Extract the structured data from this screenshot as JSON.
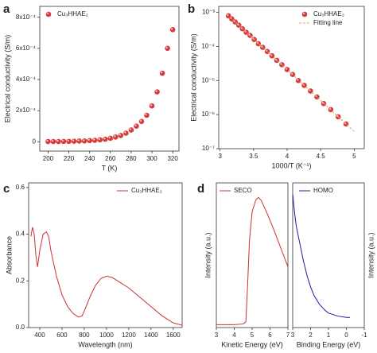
{
  "chart_data": [
    {
      "type": "scatter",
      "panel_label": "a",
      "xlabel": "T (K)",
      "ylabel": "Electrical conductivity (S/m)",
      "x": [
        200,
        205,
        210,
        215,
        220,
        225,
        230,
        235,
        240,
        245,
        250,
        255,
        260,
        265,
        270,
        275,
        280,
        285,
        290,
        295,
        300,
        305,
        310,
        315,
        320
      ],
      "series": [
        {
          "name": "Cu₃HHAE₂",
          "color": "#d42a2a",
          "values": [
            1e-06,
            1e-06,
            1e-06,
            2e-06,
            2e-06,
            3e-06,
            4e-06,
            5e-06,
            7e-06,
            9e-06,
            1.2e-05,
            1.6e-05,
            2.2e-05,
            3e-05,
            4e-05,
            5.5e-05,
            7.5e-05,
            0.0001,
            0.00013,
            0.00017,
            0.00023,
            0.00032,
            0.00044,
            0.0006,
            0.00072
          ]
        }
      ],
      "xlim": [
        192,
        326
      ],
      "xticks": [
        200,
        220,
        240,
        260,
        280,
        300,
        320
      ],
      "ylim": [
        -6e-05,
        0.00087
      ],
      "yticks": [
        0,
        {
          "value": 0.0002,
          "label": "2x10⁻⁴"
        },
        {
          "value": 0.0004,
          "label": "4x10⁻⁴"
        },
        {
          "value": 0.0006,
          "label": "6x10⁻⁴"
        },
        {
          "value": 0.0008,
          "label": "8x10⁻⁴"
        }
      ],
      "legend": "upper left"
    },
    {
      "type": "scatter",
      "panel_label": "b",
      "xlabel": "1000/T (K⁻¹)",
      "ylabel": "Electrical conductivity (S/m)",
      "log_y": true,
      "x": [
        3.125,
        3.175,
        3.226,
        3.279,
        3.333,
        3.39,
        3.448,
        3.509,
        3.571,
        3.636,
        3.704,
        3.774,
        3.846,
        3.922,
        4.0,
        4.082,
        4.167,
        4.255,
        4.348,
        4.444,
        4.545,
        4.651,
        4.762,
        4.878
      ],
      "series": [
        {
          "name": "Cu₃HHAE₂",
          "color": "#d42a2a",
          "values": [
            0.00079,
            0.00064,
            0.00052,
            0.00042,
            0.00033,
            0.00026,
            0.00021,
            0.00016,
            0.00012,
            9.4e-05,
            7.1e-05,
            5.3e-05,
            3.9e-05,
            2.9e-05,
            2.1e-05,
            1.5e-05,
            1e-05,
            7.2e-06,
            4.9e-06,
            3.3e-06,
            2.1e-06,
            1.4e-06,
            8.6e-07,
            5.3e-07
          ]
        },
        {
          "name": "Fitting line",
          "color": "#e0a070",
          "style": "dashed",
          "x": [
            3.1,
            5.0
          ],
          "values": [
            0.00088,
            3.2e-07
          ]
        }
      ],
      "xlim": [
        2.98,
        5.15
      ],
      "xticks": [
        3,
        3.5,
        4,
        4.5,
        5
      ],
      "ylim": [
        1e-07,
        0.0015
      ],
      "yticks": [
        {
          "value": 1e-07,
          "label": "10⁻⁷"
        },
        {
          "value": 1e-06,
          "label": "10⁻⁶"
        },
        {
          "value": 1e-05,
          "label": "10⁻⁵"
        },
        {
          "value": 0.0001,
          "label": "10⁻⁴"
        },
        {
          "value": 0.001,
          "label": "10⁻³"
        }
      ],
      "legend": "upper right"
    },
    {
      "type": "line",
      "panel_label": "c",
      "xlabel": "Wavelength (nm)",
      "ylabel": "Absorbance",
      "x": [
        320,
        335,
        350,
        365,
        380,
        400,
        430,
        460,
        480,
        500,
        550,
        600,
        650,
        700,
        750,
        780,
        800,
        850,
        900,
        950,
        1000,
        1050,
        1100,
        1200,
        1300,
        1400,
        1500,
        1600,
        1680
      ],
      "series": [
        {
          "name": "Cu₃HHAE₂",
          "color": "#d03030",
          "values": [
            0.39,
            0.43,
            0.4,
            0.31,
            0.26,
            0.33,
            0.4,
            0.41,
            0.39,
            0.33,
            0.22,
            0.14,
            0.09,
            0.06,
            0.045,
            0.05,
            0.07,
            0.13,
            0.18,
            0.21,
            0.22,
            0.215,
            0.2,
            0.17,
            0.13,
            0.09,
            0.05,
            0.02,
            0.01
          ]
        }
      ],
      "xlim": [
        300,
        1680
      ],
      "xticks": [
        400,
        600,
        800,
        1000,
        1200,
        1400,
        1600
      ],
      "ylim": [
        0,
        0.62
      ],
      "yticks": [
        {
          "value": 0,
          "label": "0.0"
        },
        0.2,
        0.4,
        0.6
      ],
      "legend": "upper right"
    },
    {
      "type": "line",
      "panel_label": "d",
      "xlabel": "Kinetic Energy (eV)",
      "ylabel": "Intensity (a.u.)",
      "x": [
        3,
        4,
        4.5,
        4.65,
        4.75,
        4.85,
        5.0,
        5.2,
        5.35,
        5.5,
        5.8,
        6.2,
        6.6,
        7
      ],
      "series": [
        {
          "name": "SECO",
          "color": "#d03030",
          "values": [
            0.02,
            0.02,
            0.025,
            0.04,
            0.3,
            0.6,
            0.8,
            0.88,
            0.9,
            0.88,
            0.8,
            0.68,
            0.55,
            0.42
          ]
        }
      ],
      "xlim": [
        3,
        7
      ],
      "xticks": [
        3,
        4,
        5,
        6,
        7
      ],
      "ylim": [
        0,
        1
      ],
      "legend": "upper left"
    },
    {
      "type": "line",
      "xlabel": "Binding Energy (eV)",
      "ylabel": "Intensity (a.u.)",
      "yaxis_side": "right",
      "x": [
        3,
        2.9,
        2.8,
        2.6,
        2.4,
        2.2,
        2.0,
        1.8,
        1.5,
        1.2,
        1.0,
        0.5,
        0,
        -0.2
      ],
      "series": [
        {
          "name": "HOMO",
          "color": "#1a1aa8",
          "values": [
            0.92,
            0.8,
            0.7,
            0.58,
            0.46,
            0.36,
            0.28,
            0.22,
            0.16,
            0.12,
            0.1,
            0.08,
            0.07,
            0.07
          ]
        }
      ],
      "xlim": [
        3,
        -1
      ],
      "xticks": [
        3,
        2,
        1,
        0,
        -1
      ],
      "ylim": [
        0,
        1
      ],
      "legend": "upper right"
    }
  ]
}
